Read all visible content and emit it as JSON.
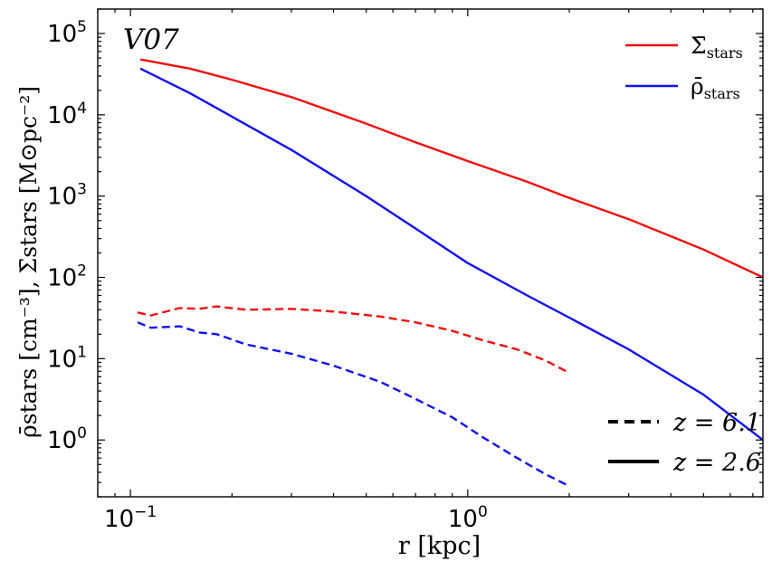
{
  "chart_data": {
    "type": "line",
    "panel_label": "V07",
    "xlabel": "r  [kpc]",
    "ylabel_bottom": "ρ̄stars  [cm⁻³],",
    "ylabel_top": "Σ̄stars  [M⊙pc⁻²]",
    "xscale": "log",
    "yscale": "log",
    "xlim": [
      0.08,
      7.5
    ],
    "ylim": [
      0.2,
      200000
    ],
    "x_ticks": [
      {
        "value": 0.1,
        "base": "10",
        "exp": "−1"
      },
      {
        "value": 1,
        "base": "10",
        "exp": "0"
      }
    ],
    "y_ticks": [
      {
        "value": 1,
        "base": "10",
        "exp": "0"
      },
      {
        "value": 10,
        "base": "10",
        "exp": "1"
      },
      {
        "value": 100,
        "base": "10",
        "exp": "2"
      },
      {
        "value": 1000,
        "base": "10",
        "exp": "3"
      },
      {
        "value": 10000,
        "base": "10",
        "exp": "4"
      },
      {
        "value": 100000,
        "base": "10",
        "exp": "5"
      }
    ],
    "color_legend": {
      "position": "top-right",
      "entries": [
        {
          "label": "Σ̄",
          "sub": "stars",
          "color": "#ee1111"
        },
        {
          "label": "ρ̄",
          "sub": "stars",
          "color": "#1111ee"
        }
      ]
    },
    "style_legend": {
      "position": "bottom-right",
      "entries": [
        {
          "label": "z = 6.1",
          "dash": "dashed"
        },
        {
          "label": "z = 2.6",
          "dash": "solid"
        }
      ]
    },
    "series": [
      {
        "name": "Σ̄stars z=2.6",
        "quantity": "sigma",
        "z": 2.6,
        "color": "#ee1111",
        "dash": "solid",
        "x": [
          0.107,
          0.15,
          0.2,
          0.3,
          0.5,
          0.7,
          1.0,
          1.5,
          2.0,
          3.0,
          5.0,
          7.5
        ],
        "y": [
          48000,
          37000,
          27000,
          16500,
          7800,
          4600,
          2700,
          1500,
          950,
          520,
          220,
          100
        ]
      },
      {
        "name": "ρ̄stars z=2.6",
        "quantity": "rho",
        "z": 2.6,
        "color": "#1111ee",
        "dash": "solid",
        "x": [
          0.107,
          0.15,
          0.2,
          0.3,
          0.5,
          0.7,
          1.0,
          1.5,
          2.0,
          3.0,
          5.0,
          7.5
        ],
        "y": [
          37000,
          18500,
          9500,
          3700,
          1000,
          400,
          150,
          60,
          32,
          13,
          3.6,
          1.0
        ]
      },
      {
        "name": "Σ̄stars z=6.1",
        "quantity": "sigma",
        "z": 6.1,
        "color": "#ee1111",
        "dash": "dashed",
        "x": [
          0.105,
          0.115,
          0.14,
          0.16,
          0.18,
          0.22,
          0.3,
          0.4,
          0.55,
          0.7,
          0.9,
          1.1,
          1.4,
          1.7,
          2.0
        ],
        "y": [
          37,
          34,
          42,
          41,
          44,
          40,
          41,
          38,
          33,
          28,
          22,
          17,
          13,
          9.5,
          6.7
        ]
      },
      {
        "name": "ρ̄stars z=6.1",
        "quantity": "rho",
        "z": 6.1,
        "color": "#1111ee",
        "dash": "dashed",
        "x": [
          0.105,
          0.115,
          0.14,
          0.16,
          0.18,
          0.22,
          0.3,
          0.4,
          0.55,
          0.7,
          0.9,
          1.1,
          1.4,
          1.7,
          2.0
        ],
        "y": [
          28,
          24,
          25,
          21,
          20,
          15,
          11.5,
          8.2,
          5.2,
          3.2,
          1.9,
          1.1,
          0.6,
          0.38,
          0.27
        ]
      }
    ]
  }
}
